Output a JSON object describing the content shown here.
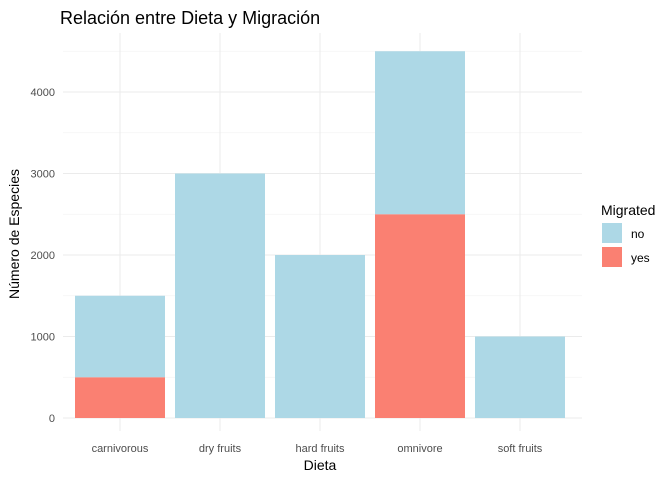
{
  "chart_data": {
    "type": "bar",
    "stacked": true,
    "title": "Relación entre Dieta y Migración",
    "xlabel": "Dieta",
    "ylabel": "Número de Especies",
    "categories": [
      "carnivorous",
      "dry fruits",
      "hard fruits",
      "omnivore",
      "soft fruits"
    ],
    "series": [
      {
        "name": "no",
        "color": "#add8e6",
        "values": [
          1000,
          3000,
          2000,
          2000,
          1000
        ]
      },
      {
        "name": "yes",
        "color": "#fa8072",
        "values": [
          500,
          0,
          0,
          2500,
          0
        ]
      }
    ],
    "ylim": [
      0,
      4500
    ],
    "yticks": [
      0,
      1000,
      2000,
      3000,
      4000
    ],
    "ytick_labels": [
      "0",
      "1000",
      "2000",
      "3000",
      "4000"
    ],
    "grid": true,
    "legend": {
      "title": "Migrated",
      "position": "right",
      "entries": [
        "no",
        "yes"
      ]
    }
  }
}
